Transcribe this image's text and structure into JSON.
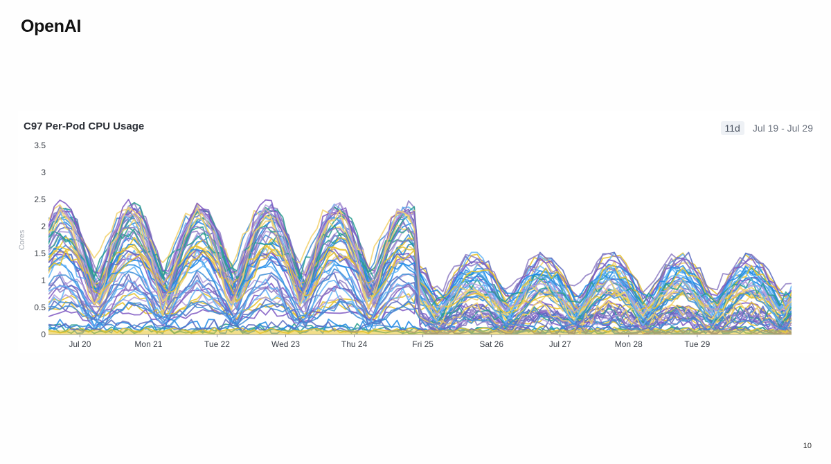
{
  "brand": "OpenAI",
  "page_number": "10",
  "header": {
    "duration": "11d",
    "date_range": "Jul 19 - Jul 29"
  },
  "chart_data": {
    "type": "line",
    "title": "C97 Per-Pod CPU Usage",
    "ylabel": "Cores",
    "xlabel": "",
    "ylim": [
      0,
      3.5
    ],
    "yticks": [
      0,
      0.5,
      1,
      1.5,
      2,
      2.5,
      3,
      3.5
    ],
    "xlim": [
      "2024-07-19T13:00",
      "2024-07-30T09:00"
    ],
    "xticks": [
      {
        "t": "2024-07-20T00:00",
        "label": "Jul 20"
      },
      {
        "t": "2024-07-21T00:00",
        "label": "Mon 21"
      },
      {
        "t": "2024-07-22T00:00",
        "label": "Tue 22"
      },
      {
        "t": "2024-07-23T00:00",
        "label": "Wed 23"
      },
      {
        "t": "2024-07-24T00:00",
        "label": "Thu 24"
      },
      {
        "t": "2024-07-25T00:00",
        "label": "Fri 25"
      },
      {
        "t": "2024-07-26T00:00",
        "label": "Sat 26"
      },
      {
        "t": "2024-07-27T00:00",
        "label": "Jul 27"
      },
      {
        "t": "2024-07-28T00:00",
        "label": "Mon 28"
      },
      {
        "t": "2024-07-29T00:00",
        "label": "Tue 29"
      }
    ],
    "grid": false,
    "legend": "none",
    "colors": [
      "#7e57c2",
      "#1e88e5",
      "#e6c229",
      "#2a9d8f",
      "#b39ddb",
      "#64b5f6",
      "#f2d16b",
      "#5c6bc0",
      "#8e7cc3",
      "#3f8ed6"
    ],
    "summary_series": [
      {
        "name": "max",
        "x": [
          "2024-07-19T13:00",
          "2024-07-20T00:00",
          "2024-07-20T12:00",
          "2024-07-21T00:00",
          "2024-07-21T12:00",
          "2024-07-22T00:00",
          "2024-07-22T12:00",
          "2024-07-23T00:00",
          "2024-07-23T12:00",
          "2024-07-24T00:00",
          "2024-07-24T12:00",
          "2024-07-24T23:00",
          "2024-07-25T00:00",
          "2024-07-25T12:00",
          "2024-07-26T00:00",
          "2024-07-26T12:00",
          "2024-07-27T00:00",
          "2024-07-27T12:00",
          "2024-07-28T00:00",
          "2024-07-28T12:00",
          "2024-07-29T00:00",
          "2024-07-29T12:00",
          "2024-07-30T09:00"
        ],
        "y": [
          2.5,
          1.3,
          2.6,
          1.3,
          2.6,
          1.2,
          2.6,
          1.2,
          2.6,
          1.2,
          2.6,
          2.6,
          0.6,
          1.5,
          0.5,
          1.5,
          0.5,
          1.5,
          0.5,
          1.5,
          0.5,
          1.5,
          0.6
        ]
      },
      {
        "name": "min",
        "x": [
          "2024-07-19T13:00",
          "2024-07-20T00:00",
          "2024-07-21T00:00",
          "2024-07-22T00:00",
          "2024-07-23T00:00",
          "2024-07-24T00:00",
          "2024-07-25T00:00",
          "2024-07-26T00:00",
          "2024-07-27T00:00",
          "2024-07-28T00:00",
          "2024-07-29T00:00",
          "2024-07-30T09:00"
        ],
        "y": [
          0,
          0,
          0,
          0,
          0,
          0,
          0,
          0,
          0,
          0,
          0,
          0
        ]
      }
    ]
  }
}
